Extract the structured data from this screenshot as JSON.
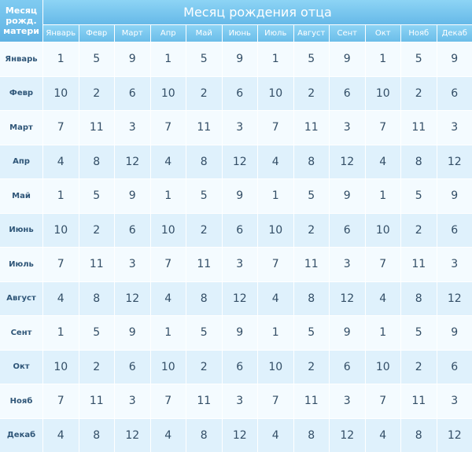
{
  "table": {
    "corner_label": "Месяц\nрожд.\nматери",
    "title": "Месяц рождения отца",
    "father_months": [
      "Январь",
      "Февр",
      "Март",
      "Апр",
      "Май",
      "Июнь",
      "Июль",
      "Август",
      "Сент",
      "Окт",
      "Нояб",
      "Декаб"
    ],
    "mother_months": [
      "Январь",
      "Февр",
      "Март",
      "Апр",
      "Май",
      "Июнь",
      "Июль",
      "Август",
      "Сент",
      "Окт",
      "Нояб",
      "Декаб"
    ],
    "rows": [
      [
        "1",
        "5",
        "9",
        "1",
        "5",
        "9",
        "1",
        "5",
        "9",
        "1",
        "5",
        "9"
      ],
      [
        "10",
        "2",
        "6",
        "10",
        "2",
        "6",
        "10",
        "2",
        "6",
        "10",
        "2",
        "6"
      ],
      [
        "7",
        "11",
        "3",
        "7",
        "11",
        "3",
        "7",
        "11",
        "3",
        "7",
        "11",
        "3"
      ],
      [
        "4",
        "8",
        "12",
        "4",
        "8",
        "12",
        "4",
        "8",
        "12",
        "4",
        "8",
        "12"
      ],
      [
        "1",
        "5",
        "9",
        "1",
        "5",
        "9",
        "1",
        "5",
        "9",
        "1",
        "5",
        "9"
      ],
      [
        "10",
        "2",
        "6",
        "10",
        "2",
        "6",
        "10",
        "2",
        "6",
        "10",
        "2",
        "6"
      ],
      [
        "7",
        "11",
        "3",
        "7",
        "11",
        "3",
        "7",
        "11",
        "3",
        "7",
        "11",
        "3"
      ],
      [
        "4",
        "8",
        "12",
        "4",
        "8",
        "12",
        "4",
        "8",
        "12",
        "4",
        "8",
        "12"
      ],
      [
        "1",
        "5",
        "9",
        "1",
        "5",
        "9",
        "1",
        "5",
        "9",
        "1",
        "5",
        "9"
      ],
      [
        "10",
        "2",
        "6",
        "10",
        "2",
        "6",
        "10",
        "2",
        "6",
        "10",
        "2",
        "6"
      ],
      [
        "7",
        "11",
        "3",
        "7",
        "11",
        "3",
        "7",
        "11",
        "3",
        "7",
        "11",
        "3"
      ],
      [
        "4",
        "8",
        "12",
        "4",
        "8",
        "12",
        "4",
        "8",
        "12",
        "4",
        "8",
        "12"
      ]
    ]
  },
  "colors": {
    "header_blue": "#66b9e8",
    "row_light": "#f4fbff",
    "row_blue": "#dff1fc",
    "text_dark": "#334e66"
  }
}
